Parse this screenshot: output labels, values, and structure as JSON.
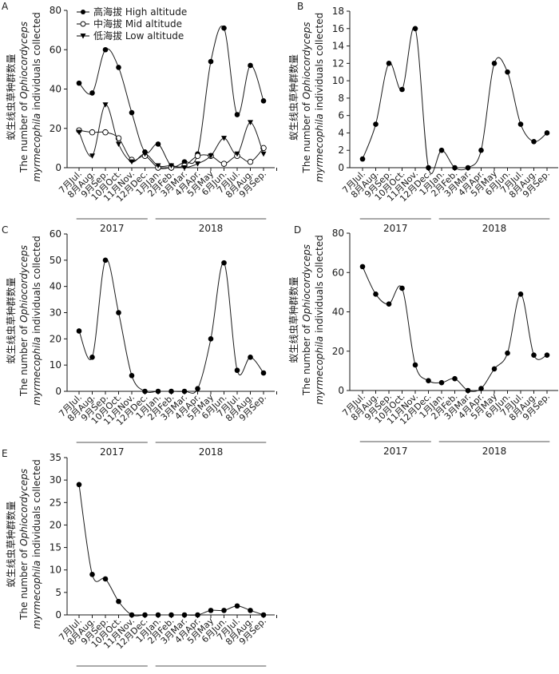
{
  "chart_data": [
    {
      "panel": "A",
      "type": "line",
      "ylim": [
        0,
        80
      ],
      "yticks": [
        0,
        20,
        40,
        60,
        80
      ],
      "ylabel_cn": "蚁生线虫草种群数量",
      "ylabel_en_1": "The number of ",
      "ylabel_en_italic": "Ophiocordyceps",
      "ylabel_en_2_italic": "myrmecophila",
      "ylabel_en_2": " individuals collected",
      "categories": [
        "7月Jul.",
        "8月Aug.",
        "9月Sep.",
        "10月Oct.",
        "11月Nov.",
        "12月Dec.",
        "1月Jan.",
        "2月Feb.",
        "3月Mar.",
        "4月Apr.",
        "5月May",
        "6月Jun.",
        "7月Jul.",
        "8月Aug.",
        "9月Sep."
      ],
      "years": [
        {
          "label": "2017",
          "from": 0,
          "to": 5
        },
        {
          "label": "2018",
          "from": 6,
          "to": 14
        }
      ],
      "legend": "top-left",
      "series": [
        {
          "name": "高海拔 High altitude",
          "marker": "filled-circle",
          "values": [
            43,
            38,
            60,
            51,
            28,
            8,
            12,
            1,
            3,
            7,
            54,
            71,
            27,
            52,
            34
          ]
        },
        {
          "name": "中海拔 Mid altitude",
          "marker": "open-circle",
          "values": [
            19,
            18,
            18,
            15,
            4,
            6,
            0,
            0,
            1,
            6,
            6,
            2,
            6,
            3,
            10
          ]
        },
        {
          "name": "低海拔 Low altitude",
          "marker": "down-triangle",
          "values": [
            18,
            6,
            32,
            12,
            3,
            7,
            1,
            1,
            0,
            2,
            6,
            15,
            7,
            23,
            7
          ]
        }
      ]
    },
    {
      "panel": "B",
      "type": "line",
      "ylim": [
        0,
        18
      ],
      "yticks": [
        0,
        2,
        4,
        6,
        8,
        10,
        12,
        14,
        16,
        18
      ],
      "ylabel_cn": "蚁生线虫草种群数量",
      "ylabel_en_1": "The number of ",
      "ylabel_en_italic": "Ophiocordyceps",
      "ylabel_en_2_italic": "myrmecophila",
      "ylabel_en_2": " individuals collected",
      "categories": [
        "7月Jul.",
        "8月Aug.",
        "9月Sep.",
        "10月Oct.",
        "11月Nov.",
        "12月Dec.",
        "1月Jan.",
        "2月Feb.",
        "3月Mar.",
        "4月Apr.",
        "5月May",
        "6月Jun.",
        "7月Jul.",
        "8月Aug.",
        "9月Sep."
      ],
      "years": [
        {
          "label": "2017",
          "from": 0,
          "to": 5
        },
        {
          "label": "2018",
          "from": 6,
          "to": 14
        }
      ],
      "series": [
        {
          "name": "B",
          "marker": "filled-circle",
          "values": [
            1,
            5,
            12,
            9,
            16,
            0,
            2,
            0,
            0,
            2,
            12,
            11,
            5,
            3,
            4
          ]
        }
      ]
    },
    {
      "panel": "C",
      "type": "line",
      "ylim": [
        0,
        60
      ],
      "yticks": [
        0,
        10,
        20,
        30,
        40,
        50,
        60
      ],
      "ylabel_cn": "蚁生线虫草种群数量",
      "ylabel_en_1": "The number of ",
      "ylabel_en_italic": "Ophiocordyceps",
      "ylabel_en_2_italic": "myrmecophila",
      "ylabel_en_2": " individuals collected",
      "categories": [
        "7月Jul.",
        "8月Aug.",
        "9月Sep.",
        "10月Oct.",
        "11月Nov.",
        "12月Dec.",
        "1月Jan.",
        "2月Feb.",
        "3月Mar.",
        "4月Apr.",
        "5月May",
        "6月Jun.",
        "7月Jul.",
        "8月Aug.",
        "9月Sep."
      ],
      "years": [
        {
          "label": "2017",
          "from": 0,
          "to": 5
        },
        {
          "label": "2018",
          "from": 6,
          "to": 14
        }
      ],
      "series": [
        {
          "name": "C",
          "marker": "filled-circle",
          "values": [
            23,
            13,
            50,
            30,
            6,
            0,
            0,
            0,
            0,
            1,
            20,
            49,
            8,
            13,
            7
          ]
        }
      ]
    },
    {
      "panel": "D",
      "type": "line",
      "ylim": [
        0,
        80
      ],
      "yticks": [
        0,
        20,
        40,
        60,
        80
      ],
      "ylabel_cn": "蚁生线虫草种群数量",
      "ylabel_en_1": "The number of ",
      "ylabel_en_italic": "Ophiocordyceps",
      "ylabel_en_2_italic": "myrmecophila",
      "ylabel_en_2": " individuals collected",
      "categories": [
        "7月Jul.",
        "8月Aug.",
        "9月Sep.",
        "10月Oct.",
        "11月Nov.",
        "12月Dec.",
        "1月Jan.",
        "2月Feb.",
        "3月Mar.",
        "4月Apr.",
        "5月May",
        "6月Jun.",
        "7月Jul.",
        "8月Aug.",
        "9月Sep."
      ],
      "years": [
        {
          "label": "2017",
          "from": 0,
          "to": 5
        },
        {
          "label": "2018",
          "from": 6,
          "to": 14
        }
      ],
      "series": [
        {
          "name": "D",
          "marker": "filled-circle",
          "values": [
            63,
            49,
            44,
            52,
            13,
            5,
            4,
            6,
            0,
            1,
            11,
            19,
            49,
            18,
            18
          ]
        }
      ]
    },
    {
      "panel": "E",
      "type": "line",
      "ylim": [
        0,
        35
      ],
      "yticks": [
        0,
        5,
        10,
        15,
        20,
        25,
        30,
        35
      ],
      "ylabel_cn": "蚁生线虫草种群数量",
      "ylabel_en_1": "The number of ",
      "ylabel_en_italic": "Ophiocordyceps",
      "ylabel_en_2_italic": "myrmecophila",
      "ylabel_en_2": " individuals collected",
      "categories": [
        "7月Jul.",
        "8月Aug.",
        "9月Sep.",
        "10月Oct.",
        "11月Nov.",
        "12月Dec.",
        "1月Jan.",
        "2月Feb.",
        "3月Mar.",
        "4月Apr.",
        "5月May",
        "6月Jun.",
        "7月Jul.",
        "8月Aug.",
        "9月Sep."
      ],
      "years": [
        {
          "label": "2017",
          "from": 0,
          "to": 5
        },
        {
          "label": "2018",
          "from": 6,
          "to": 14
        }
      ],
      "series": [
        {
          "name": "E",
          "marker": "filled-circle",
          "values": [
            29,
            9,
            8,
            3,
            0,
            0,
            0,
            0,
            0,
            0,
            1,
            1,
            2,
            1,
            0
          ]
        }
      ]
    }
  ]
}
